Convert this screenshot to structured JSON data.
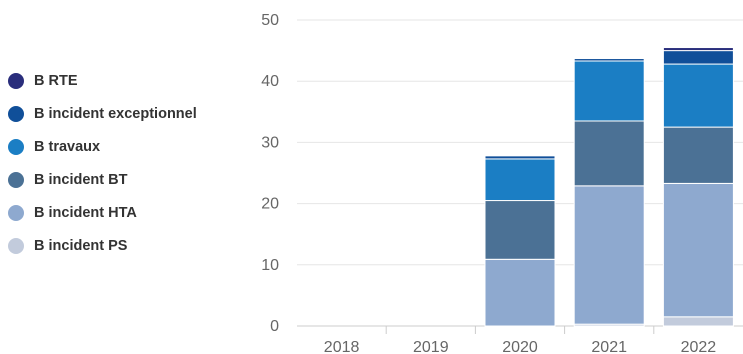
{
  "chart_data": {
    "type": "bar",
    "stacked": true,
    "categories": [
      "2018",
      "2019",
      "2020",
      "2021",
      "2022"
    ],
    "series": [
      {
        "name": "B incident PS",
        "color": "#c2cbdc",
        "values": [
          0,
          0,
          0,
          0.3,
          1.5
        ]
      },
      {
        "name": "B incident HTA",
        "color": "#8ea9cf",
        "values": [
          0,
          0,
          10.9,
          22.6,
          21.8
        ]
      },
      {
        "name": "B incident BT",
        "color": "#4b7195",
        "values": [
          0,
          0,
          9.6,
          10.6,
          9.2
        ]
      },
      {
        "name": "B travaux",
        "color": "#1b7ec4",
        "values": [
          0,
          0,
          6.8,
          9.8,
          10.3
        ]
      },
      {
        "name": "B incident exceptionnel",
        "color": "#104f99",
        "values": [
          0,
          0,
          0.5,
          0.4,
          2.2
        ]
      },
      {
        "name": "B RTE",
        "color": "#2a2e7c",
        "values": [
          0,
          0,
          0,
          0,
          0.5
        ]
      }
    ],
    "title": "",
    "xlabel": "",
    "ylabel": "",
    "ylim": [
      0,
      50
    ],
    "yticks": [
      "0",
      "10",
      "20",
      "30",
      "40",
      "50"
    ],
    "grid": true,
    "legend_position": "left"
  }
}
